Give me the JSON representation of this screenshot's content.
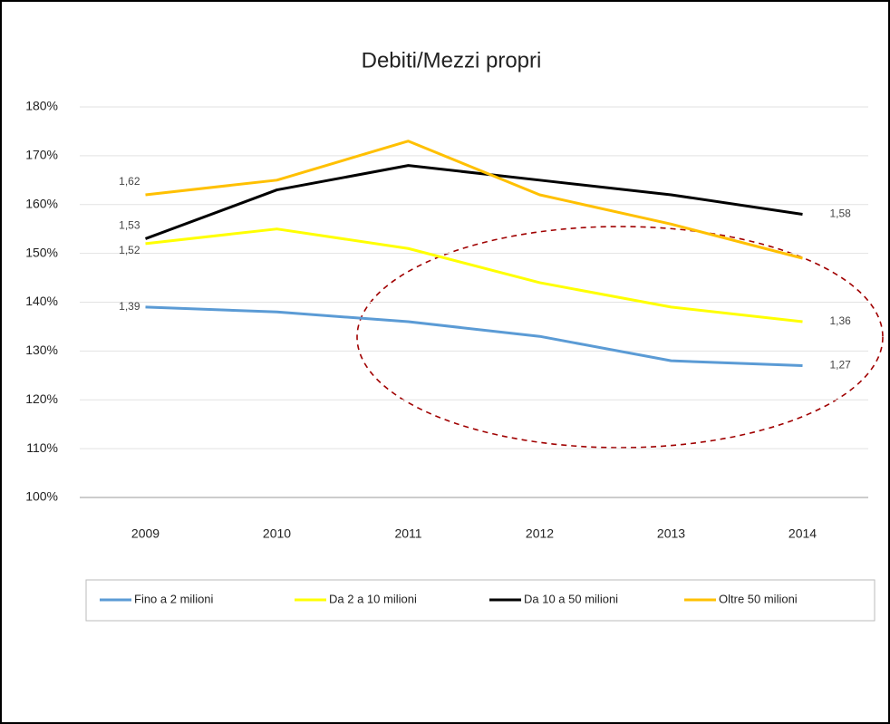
{
  "chart_data": {
    "type": "line",
    "title": "Debiti/Mezzi propri",
    "categories": [
      "2009",
      "2010",
      "2011",
      "2012",
      "2013",
      "2014"
    ],
    "series": [
      {
        "name": "Fino a 2 milioni",
        "color": "#5b9bd5",
        "values": [
          139,
          138,
          136,
          133,
          128,
          127
        ],
        "value_labels": [
          "1,39",
          null,
          null,
          null,
          null,
          "1,27"
        ]
      },
      {
        "name": "Da 2 a 10 milioni",
        "color": "#ffff00",
        "values": [
          152,
          155,
          151,
          144,
          139,
          136
        ],
        "value_labels": [
          "1,52",
          null,
          null,
          null,
          null,
          "1,36"
        ]
      },
      {
        "name": "Da 10 a 50 milioni",
        "color": "#000000",
        "values": [
          153,
          163,
          168,
          165,
          162,
          158
        ],
        "value_labels": [
          "1,53",
          null,
          null,
          null,
          null,
          "1,58"
        ]
      },
      {
        "name": "Oltre 50 milioni",
        "color": "#ffc000",
        "values": [
          162,
          165,
          173,
          162,
          156,
          149
        ],
        "value_labels": [
          "1,62",
          null,
          null,
          null,
          null,
          null
        ]
      }
    ],
    "ylim": [
      100,
      180
    ],
    "yticks": [
      {
        "value": 100,
        "label": "100%"
      },
      {
        "value": 110,
        "label": "110%"
      },
      {
        "value": 120,
        "label": "120%"
      },
      {
        "value": 130,
        "label": "130%"
      },
      {
        "value": 140,
        "label": "140%"
      },
      {
        "value": 150,
        "label": "150%"
      },
      {
        "value": 160,
        "label": "160%"
      },
      {
        "value": 170,
        "label": "170%"
      },
      {
        "value": 180,
        "label": "180%"
      }
    ],
    "grid": true,
    "legend": "bottom"
  }
}
